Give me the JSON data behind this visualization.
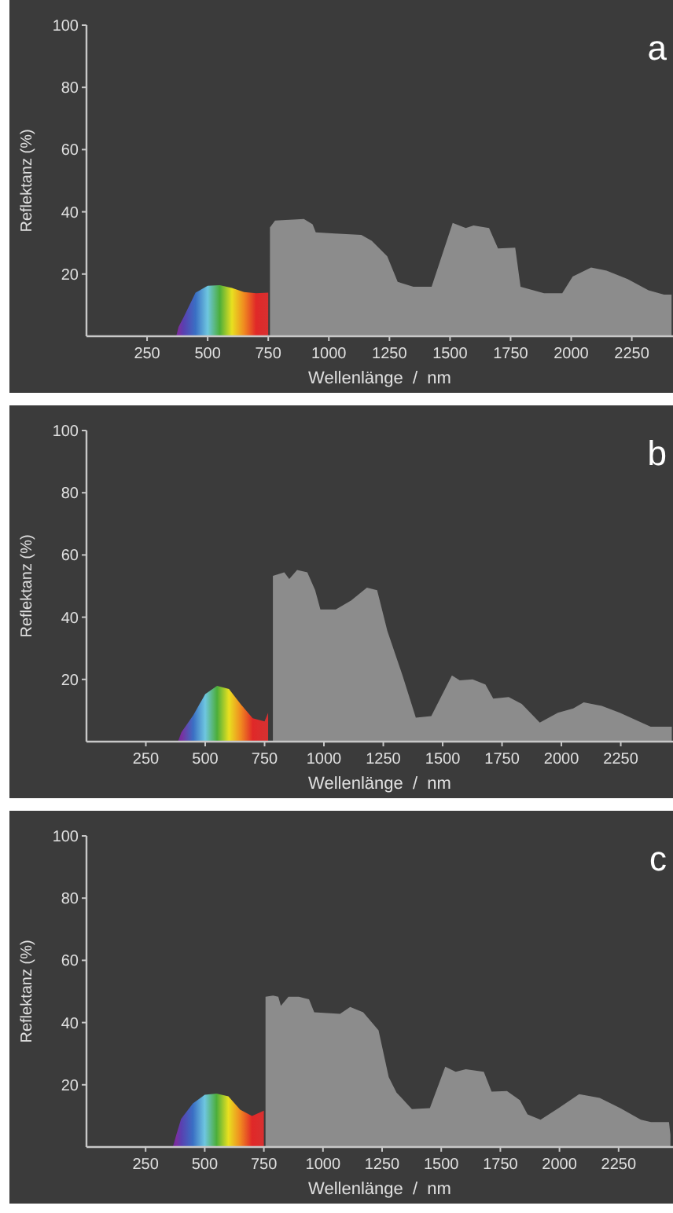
{
  "chart_data": [
    {
      "type": "area",
      "xlabel": "Wellenlänge  /  nm",
      "ylabel": "Reflektanz (%)",
      "annotations": [
        "a"
      ],
      "xlim": [
        0,
        2420
      ],
      "xticks": [
        250,
        500,
        750,
        1000,
        1250,
        1500,
        1750,
        2000,
        2250
      ],
      "ylim": [
        0,
        100
      ],
      "yticks": [
        20,
        40,
        60,
        80,
        100
      ],
      "series": [
        {
          "x": [
            370,
            380,
            400,
            450,
            500,
            550,
            600,
            650,
            700,
            750
          ],
          "values": [
            0,
            3,
            6,
            14,
            16.2,
            16.4,
            15.5,
            14.2,
            13.8,
            14
          ],
          "colors": [
            "#6a2a9a",
            "#7b2fa0",
            "#5a3fb0",
            "#3a6fc4",
            "#6ec6e0",
            "#4cae3a",
            "#e8e020",
            "#f08a20",
            "#e02828",
            "#d83030"
          ]
        },
        {
          "x": [
            757,
            778,
            853,
            897,
            933,
            946,
            1026,
            1134,
            1177,
            1241,
            1284,
            1349,
            1424,
            1511,
            1565,
            1597,
            1661,
            1698,
            1769,
            1791,
            1888,
            1963,
            2006,
            2082,
            2146,
            2233,
            2319,
            2383,
            2414
          ],
          "values": [
            35,
            37.2,
            37.5,
            37.7,
            36,
            33.4,
            33,
            32.6,
            30.7,
            25.7,
            17.5,
            15.9,
            15.9,
            36.4,
            34.8,
            35.6,
            34.8,
            28.2,
            28.5,
            15.9,
            13.8,
            13.8,
            19.2,
            22.1,
            21.1,
            18.4,
            14.8,
            13.4,
            13.4
          ],
          "color": "#8c8c8c"
        }
      ]
    },
    {
      "type": "area",
      "xlabel": "Wellenlänge  /  nm",
      "ylabel": "Reflektanz (%)",
      "annotations": [
        "b"
      ],
      "xlim": [
        0,
        2470
      ],
      "xticks": [
        250,
        500,
        750,
        1000,
        1250,
        1500,
        1750,
        2000,
        2250
      ],
      "ylim": [
        0,
        100
      ],
      "yticks": [
        20,
        40,
        60,
        80,
        100
      ],
      "series": [
        {
          "x": [
            385,
            400,
            450,
            500,
            550,
            600,
            650,
            700,
            750,
            765
          ],
          "values": [
            0,
            3,
            8.5,
            15.3,
            17.9,
            16.9,
            12,
            7.5,
            6.5,
            9.3
          ],
          "colors": [
            "#6a2a9a",
            "#7b2fa0",
            "#3a6fc4",
            "#6ec6e0",
            "#4cae3a",
            "#e8e020",
            "#f08a20",
            "#e02828",
            "#d83030",
            "#d83030"
          ]
        },
        {
          "x": [
            785,
            833,
            854,
            887,
            930,
            963,
            985,
            1050,
            1115,
            1181,
            1224,
            1267,
            1333,
            1387,
            1452,
            1539,
            1572,
            1626,
            1680,
            1713,
            1778,
            1833,
            1909,
            1985,
            2050,
            2094,
            2170,
            2246,
            2376,
            2465
          ],
          "values": [
            53.3,
            54.4,
            52.3,
            55.2,
            54.4,
            48.7,
            42.5,
            42.5,
            45.4,
            49.5,
            48.7,
            35.6,
            20.8,
            7.7,
            8.2,
            21.3,
            19.7,
            20,
            18.4,
            13.8,
            14.3,
            12.1,
            6.1,
            9.3,
            10.7,
            12.6,
            11.5,
            9.3,
            4.8,
            4.8
          ],
          "color": "#8c8c8c"
        }
      ]
    },
    {
      "type": "area",
      "xlabel": "Wellenlänge  /  nm",
      "ylabel": "Reflektanz (%)",
      "annotations": [
        "c"
      ],
      "xlim": [
        0,
        2480
      ],
      "xticks": [
        250,
        500,
        750,
        1000,
        1250,
        1500,
        1750,
        2000,
        2250
      ],
      "ylim": [
        0,
        100
      ],
      "yticks": [
        20,
        40,
        60,
        80,
        100
      ],
      "series": [
        {
          "x": [
            365,
            380,
            400,
            450,
            500,
            550,
            600,
            650,
            700,
            750
          ],
          "values": [
            0,
            4,
            9,
            14,
            16.8,
            17.2,
            16.3,
            12,
            10,
            11.7
          ],
          "colors": [
            "#6a2a9a",
            "#7b2fa0",
            "#5a3fb0",
            "#3a6fc4",
            "#6ec6e0",
            "#4cae3a",
            "#e8e020",
            "#f08a20",
            "#e02828",
            "#d83030"
          ]
        },
        {
          "x": [
            757,
            789,
            811,
            822,
            854,
            898,
            941,
            963,
            1072,
            1115,
            1170,
            1235,
            1278,
            1311,
            1376,
            1452,
            1517,
            1561,
            1604,
            1680,
            1713,
            1778,
            1833,
            1865,
            1920,
            1996,
            2083,
            2170,
            2257,
            2344,
            2387,
            2463,
            2469
          ],
          "values": [
            48.3,
            48.7,
            48.3,
            45.4,
            48.3,
            48.3,
            47.5,
            43.3,
            42.8,
            45,
            43.3,
            37.5,
            22.5,
            17.5,
            12.2,
            12.5,
            25.8,
            24.2,
            25,
            24.2,
            17.8,
            18,
            15,
            10.5,
            8.8,
            12.5,
            17,
            15.8,
            12.5,
            8.8,
            8,
            8,
            4
          ],
          "color": "#8c8c8c"
        }
      ]
    }
  ]
}
